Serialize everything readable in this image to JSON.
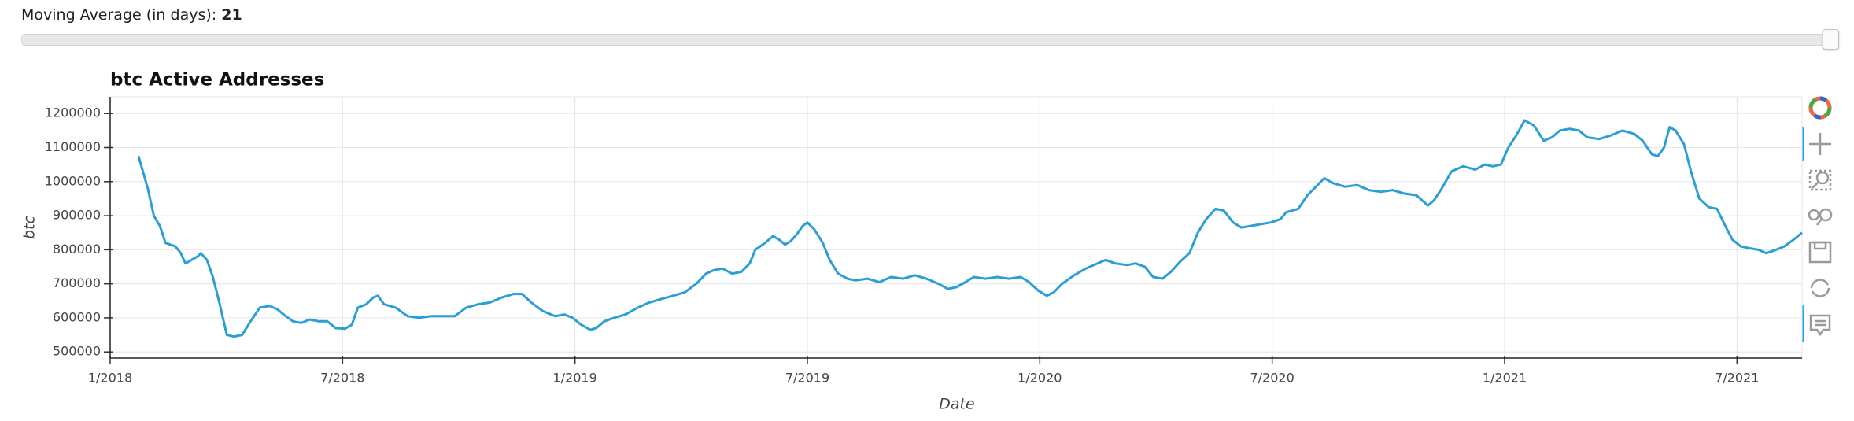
{
  "slider": {
    "label": "Moving Average (in days):",
    "value": 21
  },
  "chart_data": {
    "type": "line",
    "title": "btc Active Addresses",
    "x_label": "Date",
    "y_label": "btc",
    "color": "#2b9fd4",
    "grid": true,
    "xlim": [
      2018,
      2021.64
    ],
    "ylim": [
      482000,
      1249000
    ],
    "xticks": [
      {
        "value": 2018,
        "label": "1/2018"
      },
      {
        "value": 2018.5,
        "label": "7/2018"
      },
      {
        "value": 2019,
        "label": "1/2019"
      },
      {
        "value": 2019.5,
        "label": "7/2019"
      },
      {
        "value": 2020,
        "label": "1/2020"
      },
      {
        "value": 2020.5,
        "label": "7/2020"
      },
      {
        "value": 2021,
        "label": "1/2021"
      },
      {
        "value": 2021.5,
        "label": "7/2021"
      }
    ],
    "yticks": [
      500000,
      600000,
      700000,
      800000,
      900000,
      1000000,
      1100000,
      1200000
    ],
    "x": [
      2018.061,
      2018.081,
      2018.094,
      2018.107,
      2018.119,
      2018.14,
      2018.152,
      2018.162,
      2018.175,
      2018.188,
      2018.195,
      2018.208,
      2018.221,
      2018.234,
      2018.251,
      2018.266,
      2018.284,
      2018.302,
      2018.322,
      2018.343,
      2018.36,
      2018.373,
      2018.393,
      2018.411,
      2018.429,
      2018.449,
      2018.467,
      2018.485,
      2018.505,
      2018.52,
      2018.533,
      2018.551,
      2018.566,
      2018.576,
      2018.589,
      2018.614,
      2018.64,
      2018.665,
      2018.69,
      2018.716,
      2018.741,
      2018.766,
      2018.792,
      2018.817,
      2018.843,
      2018.868,
      2018.886,
      2018.906,
      2018.931,
      2018.957,
      2018.977,
      2018.995,
      2019.013,
      2019.033,
      2019.046,
      2019.063,
      2019.084,
      2019.109,
      2019.135,
      2019.16,
      2019.185,
      2019.211,
      2019.236,
      2019.261,
      2019.282,
      2019.299,
      2019.317,
      2019.338,
      2019.358,
      2019.376,
      2019.388,
      2019.409,
      2019.426,
      2019.439,
      2019.452,
      2019.464,
      2019.477,
      2019.49,
      2019.5,
      2019.515,
      2019.533,
      2019.548,
      2019.566,
      2019.586,
      2019.604,
      2019.629,
      2019.655,
      2019.68,
      2019.706,
      2019.731,
      2019.756,
      2019.782,
      2019.802,
      2019.82,
      2019.84,
      2019.858,
      2019.883,
      2019.909,
      2019.934,
      2019.959,
      2019.977,
      2019.997,
      2020.015,
      2020.03,
      2020.048,
      2020.074,
      2020.099,
      2020.124,
      2020.142,
      2020.162,
      2020.188,
      2020.206,
      2020.226,
      2020.244,
      2020.264,
      2020.282,
      2020.302,
      2020.322,
      2020.34,
      2020.358,
      2020.378,
      2020.396,
      2020.416,
      2020.434,
      2020.454,
      2020.475,
      2020.497,
      2020.518,
      2020.53,
      2020.556,
      2020.576,
      2020.594,
      2020.612,
      2020.632,
      2020.657,
      2020.683,
      2020.708,
      2020.734,
      2020.759,
      2020.784,
      2020.81,
      2020.835,
      2020.848,
      2020.865,
      2020.886,
      2020.911,
      2020.937,
      2020.957,
      2020.975,
      2020.992,
      2021.008,
      2021.025,
      2021.043,
      2021.063,
      2021.084,
      2021.102,
      2021.119,
      2021.14,
      2021.16,
      2021.178,
      2021.203,
      2021.228,
      2021.254,
      2021.279,
      2021.297,
      2021.317,
      2021.33,
      2021.343,
      2021.355,
      2021.368,
      2021.386,
      2021.401,
      2021.419,
      2021.439,
      2021.457,
      2021.475,
      2021.49,
      2021.508,
      2021.525,
      2021.546,
      2021.563,
      2021.584,
      2021.602,
      2021.622,
      2021.64
    ],
    "values": [
      1075000,
      980000,
      900000,
      870000,
      820000,
      810000,
      790000,
      760000,
      770000,
      780000,
      790000,
      770000,
      720000,
      650000,
      550000,
      545000,
      550000,
      590000,
      630000,
      635000,
      625000,
      610000,
      590000,
      585000,
      595000,
      590000,
      590000,
      570000,
      568000,
      580000,
      630000,
      640000,
      660000,
      665000,
      640000,
      630000,
      605000,
      600000,
      605000,
      605000,
      605000,
      630000,
      640000,
      645000,
      660000,
      670000,
      670000,
      645000,
      620000,
      605000,
      610000,
      600000,
      580000,
      565000,
      570000,
      590000,
      600000,
      610000,
      630000,
      645000,
      655000,
      665000,
      675000,
      700000,
      730000,
      740000,
      745000,
      730000,
      735000,
      760000,
      800000,
      820000,
      840000,
      830000,
      815000,
      825000,
      845000,
      870000,
      880000,
      860000,
      820000,
      770000,
      730000,
      715000,
      710000,
      715000,
      705000,
      720000,
      715000,
      725000,
      715000,
      700000,
      685000,
      690000,
      705000,
      720000,
      715000,
      720000,
      715000,
      720000,
      705000,
      680000,
      665000,
      675000,
      700000,
      725000,
      745000,
      760000,
      770000,
      760000,
      755000,
      760000,
      750000,
      720000,
      715000,
      735000,
      765000,
      790000,
      850000,
      890000,
      920000,
      915000,
      880000,
      865000,
      870000,
      875000,
      880000,
      890000,
      910000,
      920000,
      960000,
      985000,
      1010000,
      995000,
      985000,
      990000,
      975000,
      970000,
      975000,
      965000,
      960000,
      930000,
      945000,
      980000,
      1030000,
      1045000,
      1035000,
      1050000,
      1045000,
      1050000,
      1100000,
      1135000,
      1180000,
      1165000,
      1120000,
      1130000,
      1150000,
      1155000,
      1150000,
      1130000,
      1125000,
      1135000,
      1150000,
      1140000,
      1120000,
      1080000,
      1075000,
      1100000,
      1160000,
      1150000,
      1110000,
      1030000,
      950000,
      925000,
      920000,
      870000,
      830000,
      810000,
      805000,
      800000,
      790000,
      800000,
      810000,
      830000,
      850000
    ]
  }
}
